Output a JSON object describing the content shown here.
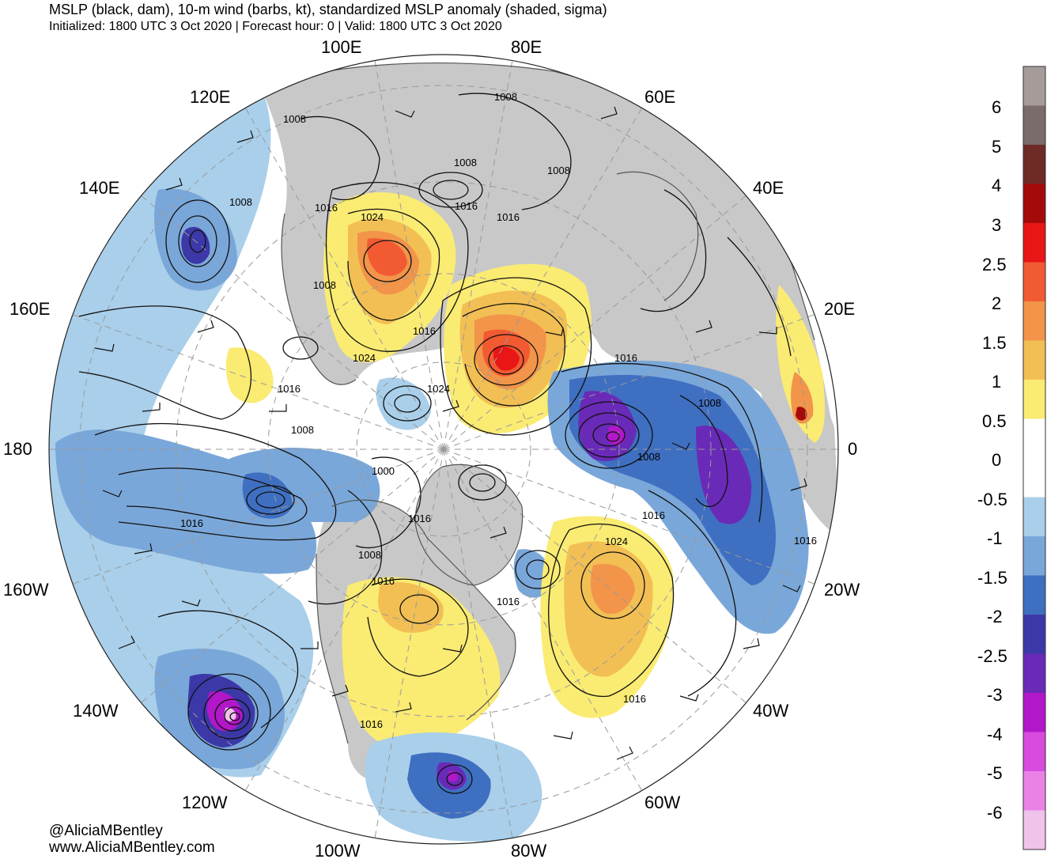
{
  "header": {
    "title": "MSLP (black, dam), 10-m wind (barbs, kt), standardized MSLP anomaly (shaded, sigma)",
    "subtitle": "Initialized: 1800 UTC 3 Oct 2020 | Forecast hour: 0 | Valid: 1800 UTC 3 Oct 2020"
  },
  "credits": {
    "handle": "@AliciaMBentley",
    "website": "www.AliciaMBentley.com"
  },
  "map": {
    "projection": "north-polar-stereographic",
    "longitude_labels": [
      "100E",
      "80E",
      "120E",
      "60E",
      "140E",
      "40E",
      "160E",
      "20E",
      "180",
      "0",
      "160W",
      "20W",
      "140W",
      "40W",
      "120W",
      "60W",
      "100W",
      "80W"
    ],
    "isobar_labels": [
      "1008",
      "1008",
      "1008",
      "1008",
      "1016",
      "1016",
      "1016",
      "1024",
      "1008",
      "1008",
      "1016",
      "1024",
      "1016",
      "1016",
      "1024",
      "1008",
      "1008",
      "1000",
      "1008",
      "1016",
      "1016",
      "1016",
      "1024",
      "1016",
      "1008",
      "1016",
      "1016",
      "1016",
      "1016"
    ],
    "colors": {
      "land": "#c8c8c8",
      "ocean": "#ffffff",
      "graticule": "#9a9a9a",
      "coastline": "#555555"
    }
  },
  "colorbar": {
    "labels": [
      "6",
      "5",
      "4",
      "3",
      "2.5",
      "2",
      "1.5",
      "1",
      "0.5",
      "0",
      "-0.5",
      "-1",
      "-1.5",
      "-2",
      "-2.5",
      "-3",
      "-4",
      "-5",
      "-6"
    ],
    "colors": [
      "#a59c9a",
      "#7a6c6a",
      "#6e2a25",
      "#a50a0a",
      "#e81616",
      "#f25a32",
      "#f29449",
      "#f2bf54",
      "#faeb73",
      "#ffffff",
      "#ffffff",
      "#a9cfea",
      "#7aa7d9",
      "#3f6fc1",
      "#3c38a8",
      "#6a2ab8",
      "#b217c9",
      "#d94ade",
      "#ea82e6",
      "#f0c2ec"
    ]
  }
}
